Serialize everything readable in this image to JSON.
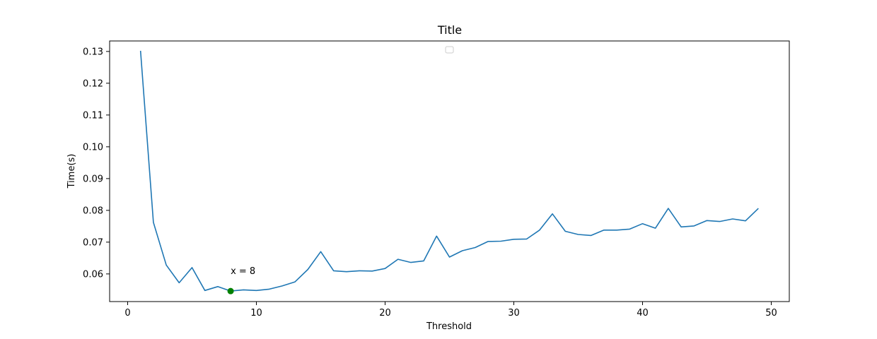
{
  "chart_data": {
    "type": "line",
    "title": "Title",
    "xlabel": "Threshold",
    "ylabel": "Time(s)",
    "xlim": [
      -1.4,
      51.4
    ],
    "ylim": [
      0.0513,
      0.1333
    ],
    "xticks": [
      0,
      10,
      20,
      30,
      40,
      50
    ],
    "yticks": [
      0.06,
      0.07,
      0.08,
      0.09,
      0.1,
      0.11,
      0.12,
      0.13
    ],
    "ytick_labels": [
      "0.06",
      "0.07",
      "0.08",
      "0.09",
      "0.10",
      "0.11",
      "0.12",
      "0.13"
    ],
    "grid": false,
    "legend": {
      "placement": "upper center",
      "entries": []
    },
    "series": [
      {
        "color": "#1f77b4",
        "x": [
          1,
          2,
          3,
          4,
          5,
          6,
          7,
          8,
          9,
          10,
          11,
          12,
          13,
          14,
          15,
          16,
          17,
          18,
          19,
          20,
          21,
          22,
          23,
          24,
          25,
          26,
          27,
          28,
          29,
          30,
          31,
          32,
          33,
          34,
          35,
          36,
          37,
          38,
          39,
          40,
          41,
          42,
          43,
          44,
          45,
          46,
          47,
          48,
          49
        ],
        "y": [
          0.1302,
          0.0762,
          0.0628,
          0.0572,
          0.062,
          0.0548,
          0.056,
          0.0546,
          0.055,
          0.0548,
          0.0552,
          0.0562,
          0.0575,
          0.0614,
          0.067,
          0.061,
          0.0607,
          0.061,
          0.0609,
          0.0617,
          0.0646,
          0.0636,
          0.0641,
          0.0719,
          0.0653,
          0.0673,
          0.0683,
          0.0702,
          0.0703,
          0.0709,
          0.071,
          0.0738,
          0.0789,
          0.0734,
          0.0724,
          0.0721,
          0.0738,
          0.0738,
          0.0741,
          0.0758,
          0.0744,
          0.0806,
          0.0748,
          0.0751,
          0.0768,
          0.0765,
          0.0773,
          0.0767,
          0.0806
        ]
      }
    ],
    "highlight_point": {
      "x": 8,
      "y": 0.0546,
      "color": "#008000",
      "label": "x = 8"
    }
  }
}
